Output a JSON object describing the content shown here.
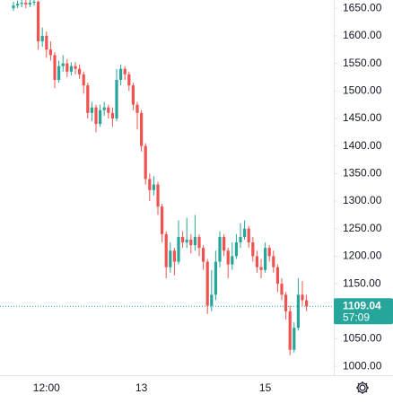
{
  "chart_data": {
    "type": "candlestick",
    "categories": [
      null,
      null,
      null,
      null,
      null,
      null,
      null,
      null,
      "12:00",
      null,
      null,
      null,
      null,
      null,
      null,
      null,
      null,
      null,
      null,
      null,
      null,
      null,
      null,
      null,
      null,
      null,
      null,
      null,
      null,
      null,
      null,
      "13",
      null,
      null,
      null,
      null,
      null,
      null,
      null,
      null,
      null,
      null,
      null,
      null,
      null,
      null,
      null,
      null,
      null,
      null,
      null,
      null,
      null,
      null,
      null,
      null,
      null,
      null,
      null,
      null,
      null,
      "15",
      null,
      null,
      null,
      null,
      null,
      null,
      null,
      null,
      null,
      null
    ],
    "open": [
      1650,
      1655,
      1658,
      1660,
      1657,
      1660,
      1662,
      1590,
      1600,
      1575,
      1565,
      1520,
      1545,
      1550,
      1535,
      1545,
      1540,
      1530,
      1510,
      1460,
      1470,
      1440,
      1465,
      1470,
      1460,
      1450,
      1520,
      1540,
      1530,
      1510,
      1475,
      1460,
      1400,
      1340,
      1320,
      1330,
      1290,
      1240,
      1180,
      1210,
      1190,
      1235,
      1225,
      1230,
      1220,
      1235,
      1215,
      1190,
      1110,
      1130,
      1190,
      1235,
      1210,
      1185,
      1200,
      1225,
      1235,
      1250,
      1225,
      1200,
      1180,
      1175,
      1215,
      1200,
      1180,
      1150,
      1130,
      1100,
      1030,
      1070,
      1130,
      1120
    ],
    "high": [
      1662,
      1664,
      1666,
      1665,
      1665,
      1668,
      1664,
      1615,
      1608,
      1590,
      1570,
      1555,
      1565,
      1558,
      1552,
      1552,
      1548,
      1535,
      1515,
      1480,
      1475,
      1475,
      1480,
      1475,
      1470,
      1540,
      1548,
      1545,
      1535,
      1515,
      1480,
      1465,
      1405,
      1350,
      1345,
      1335,
      1295,
      1245,
      1225,
      1215,
      1265,
      1245,
      1270,
      1240,
      1275,
      1240,
      1220,
      1195,
      1175,
      1210,
      1245,
      1240,
      1215,
      1225,
      1240,
      1260,
      1265,
      1255,
      1235,
      1210,
      1195,
      1225,
      1220,
      1210,
      1185,
      1160,
      1135,
      1110,
      1080,
      1160,
      1155,
      1130
    ],
    "low": [
      1645,
      1650,
      1652,
      1650,
      1652,
      1655,
      1575,
      1580,
      1560,
      1555,
      1505,
      1515,
      1535,
      1525,
      1528,
      1530,
      1522,
      1495,
      1450,
      1445,
      1425,
      1435,
      1455,
      1450,
      1435,
      1445,
      1510,
      1520,
      1500,
      1465,
      1430,
      1390,
      1330,
      1300,
      1310,
      1275,
      1225,
      1160,
      1170,
      1165,
      1185,
      1215,
      1215,
      1205,
      1210,
      1200,
      1175,
      1095,
      1100,
      1120,
      1180,
      1200,
      1160,
      1175,
      1195,
      1215,
      1230,
      1215,
      1190,
      1170,
      1160,
      1170,
      1190,
      1170,
      1135,
      1120,
      1085,
      1020,
      1025,
      1065,
      1110,
      1100
    ],
    "close": [
      1655,
      1658,
      1660,
      1657,
      1660,
      1662,
      1590,
      1600,
      1575,
      1565,
      1520,
      1545,
      1550,
      1535,
      1545,
      1540,
      1530,
      1510,
      1460,
      1470,
      1440,
      1465,
      1470,
      1460,
      1450,
      1520,
      1540,
      1530,
      1510,
      1475,
      1460,
      1400,
      1340,
      1320,
      1330,
      1290,
      1240,
      1180,
      1210,
      1190,
      1235,
      1225,
      1230,
      1220,
      1235,
      1215,
      1190,
      1110,
      1130,
      1190,
      1235,
      1210,
      1185,
      1200,
      1225,
      1235,
      1250,
      1225,
      1200,
      1180,
      1175,
      1215,
      1200,
      1180,
      1150,
      1130,
      1100,
      1030,
      1070,
      1130,
      1120,
      1109.04
    ],
    "up_color": "#26a69a",
    "down_color": "#ef5350",
    "last_color": "#26a69a",
    "countdown": "57:09",
    "ylim": [
      984,
      1665
    ],
    "yticks": [
      {
        "value": 1000,
        "label": "1000.00"
      },
      {
        "value": 1050,
        "label": "1050.00"
      },
      {
        "value": 1100,
        "label": "1100.00"
      },
      {
        "value": 1150,
        "label": "1150.00"
      },
      {
        "value": 1200,
        "label": "1200.00"
      },
      {
        "value": 1250,
        "label": "1250.00"
      },
      {
        "value": 1300,
        "label": "1300.00"
      },
      {
        "value": 1350,
        "label": "1350.00"
      },
      {
        "value": 1400,
        "label": "1400.00"
      },
      {
        "value": 1450,
        "label": "1450.00"
      },
      {
        "value": 1500,
        "label": "1500.00"
      },
      {
        "value": 1550,
        "label": "1550.00"
      },
      {
        "value": 1600,
        "label": "1600.00"
      },
      {
        "value": 1650,
        "label": "1650.00"
      }
    ],
    "grid": false
  }
}
